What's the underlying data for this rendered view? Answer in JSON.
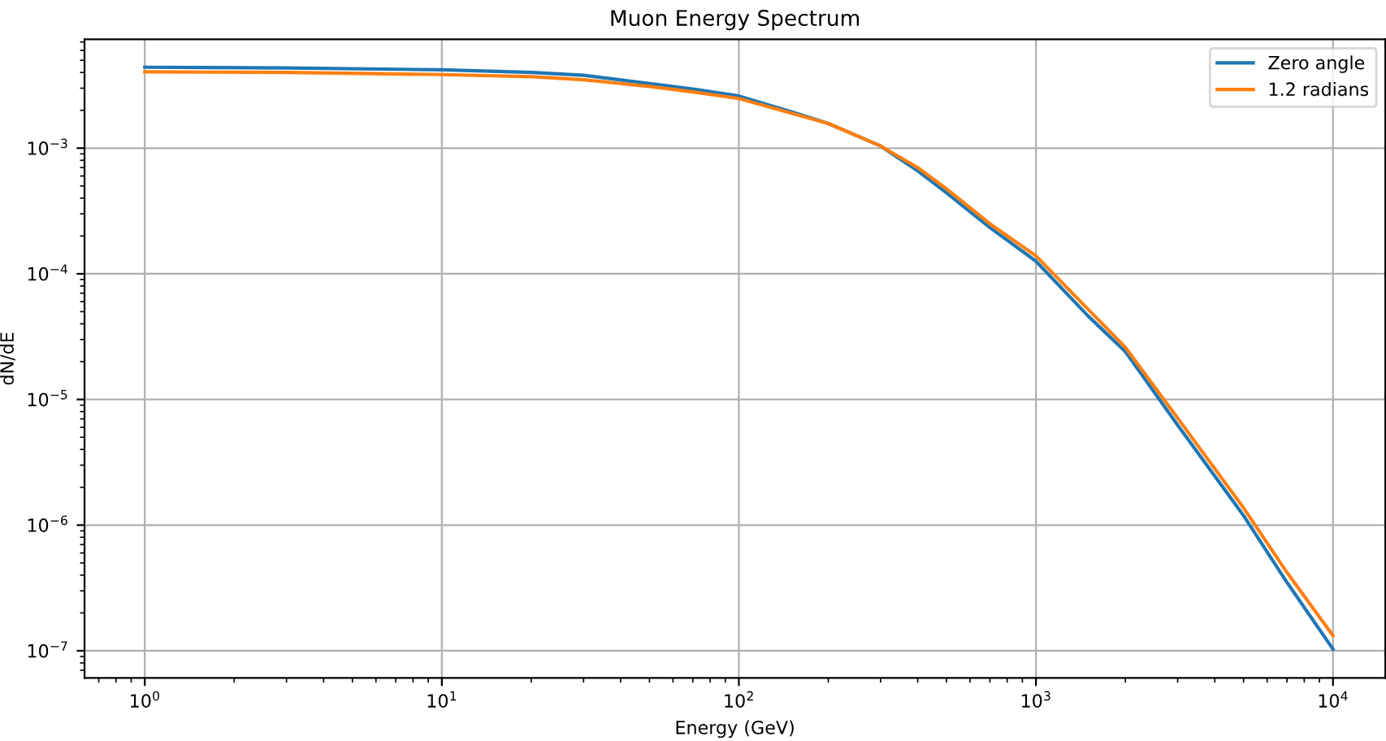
{
  "chart_data": {
    "type": "line",
    "title": "Muon Energy Spectrum",
    "xlabel": "Energy (GeV)",
    "ylabel": "dN/dE",
    "log": "xy",
    "grid": true,
    "legend": "top right",
    "line_style": "solid",
    "marker": "none",
    "x": [
      1,
      3,
      10,
      20,
      30,
      50,
      70,
      100,
      150,
      200,
      300,
      400,
      500,
      700,
      1000,
      1500,
      2000,
      3000,
      5000,
      7000,
      10000
    ],
    "series": [
      {
        "name": "Zero angle",
        "color": "#1f77b4",
        "values": [
          0.0044,
          0.00435,
          0.0042,
          0.004,
          0.0038,
          0.00326,
          0.00295,
          0.0026,
          0.00195,
          0.00157,
          0.00104,
          0.00066,
          0.00044,
          0.000233,
          0.000126,
          4.6e-05,
          2.4e-05,
          6.25e-06,
          1.19e-06,
          3.5e-07,
          1.03e-07
        ]
      },
      {
        "name": "1.2 radians",
        "color": "#ff7f0e",
        "values": [
          0.00405,
          0.004,
          0.00385,
          0.0037,
          0.0035,
          0.0031,
          0.0028,
          0.00248,
          0.0019,
          0.00157,
          0.00104,
          0.0007,
          0.000475,
          0.00025,
          0.000139,
          5.2e-05,
          2.6e-05,
          7.1e-06,
          1.37e-06,
          4.2e-07,
          1.32e-07
        ]
      }
    ],
    "xlim": [
      0.627,
      15000
    ],
    "ylim": [
      6.07e-08,
      0.00735
    ],
    "xticks": [
      {
        "value": 1,
        "label": "10$^{0}$"
      },
      {
        "value": 10,
        "label": "10$^{1}$"
      },
      {
        "value": 100,
        "label": "10$^{2}$"
      },
      {
        "value": 1000,
        "label": "10$^{3}$"
      },
      {
        "value": 10000,
        "label": "10$^{4}$"
      }
    ],
    "yticks": [
      {
        "value": 1e-07,
        "label": "10$^{−7}$"
      },
      {
        "value": 1e-06,
        "label": "10$^{−6}$"
      },
      {
        "value": 1e-05,
        "label": "10$^{−5}$"
      },
      {
        "value": 0.0001,
        "label": "10$^{−4}$"
      },
      {
        "value": 0.001,
        "label": "10$^{−3}$"
      }
    ]
  }
}
